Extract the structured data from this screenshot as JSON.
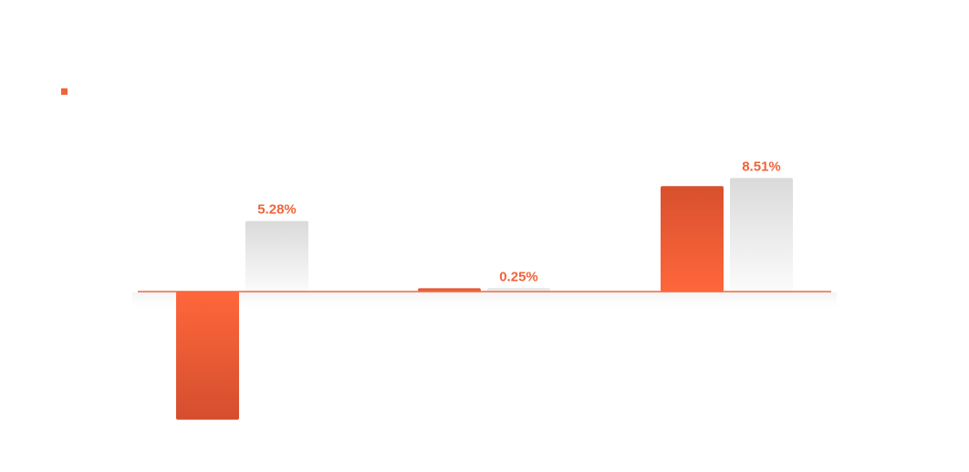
{
  "chart_data": {
    "type": "bar",
    "title": "",
    "xlabel": "",
    "ylabel": "",
    "categories": [
      "",
      "",
      ""
    ],
    "ylim": [
      -11,
      15
    ],
    "grid": false,
    "legend": "top-left",
    "series": [
      {
        "values": [
          -9.6,
          0.25,
          7.9
        ],
        "color": "#f0643a",
        "style": "orange-gradient"
      },
      {
        "values": [
          5.28,
          0.25,
          8.51
        ],
        "color": "#dcdcdc",
        "style": "gray-gradient",
        "data_labels": [
          "5.28%",
          "0.25%",
          "8.51%"
        ]
      }
    ],
    "label_color": "#f0643a",
    "axis_color": "#f0643a"
  }
}
